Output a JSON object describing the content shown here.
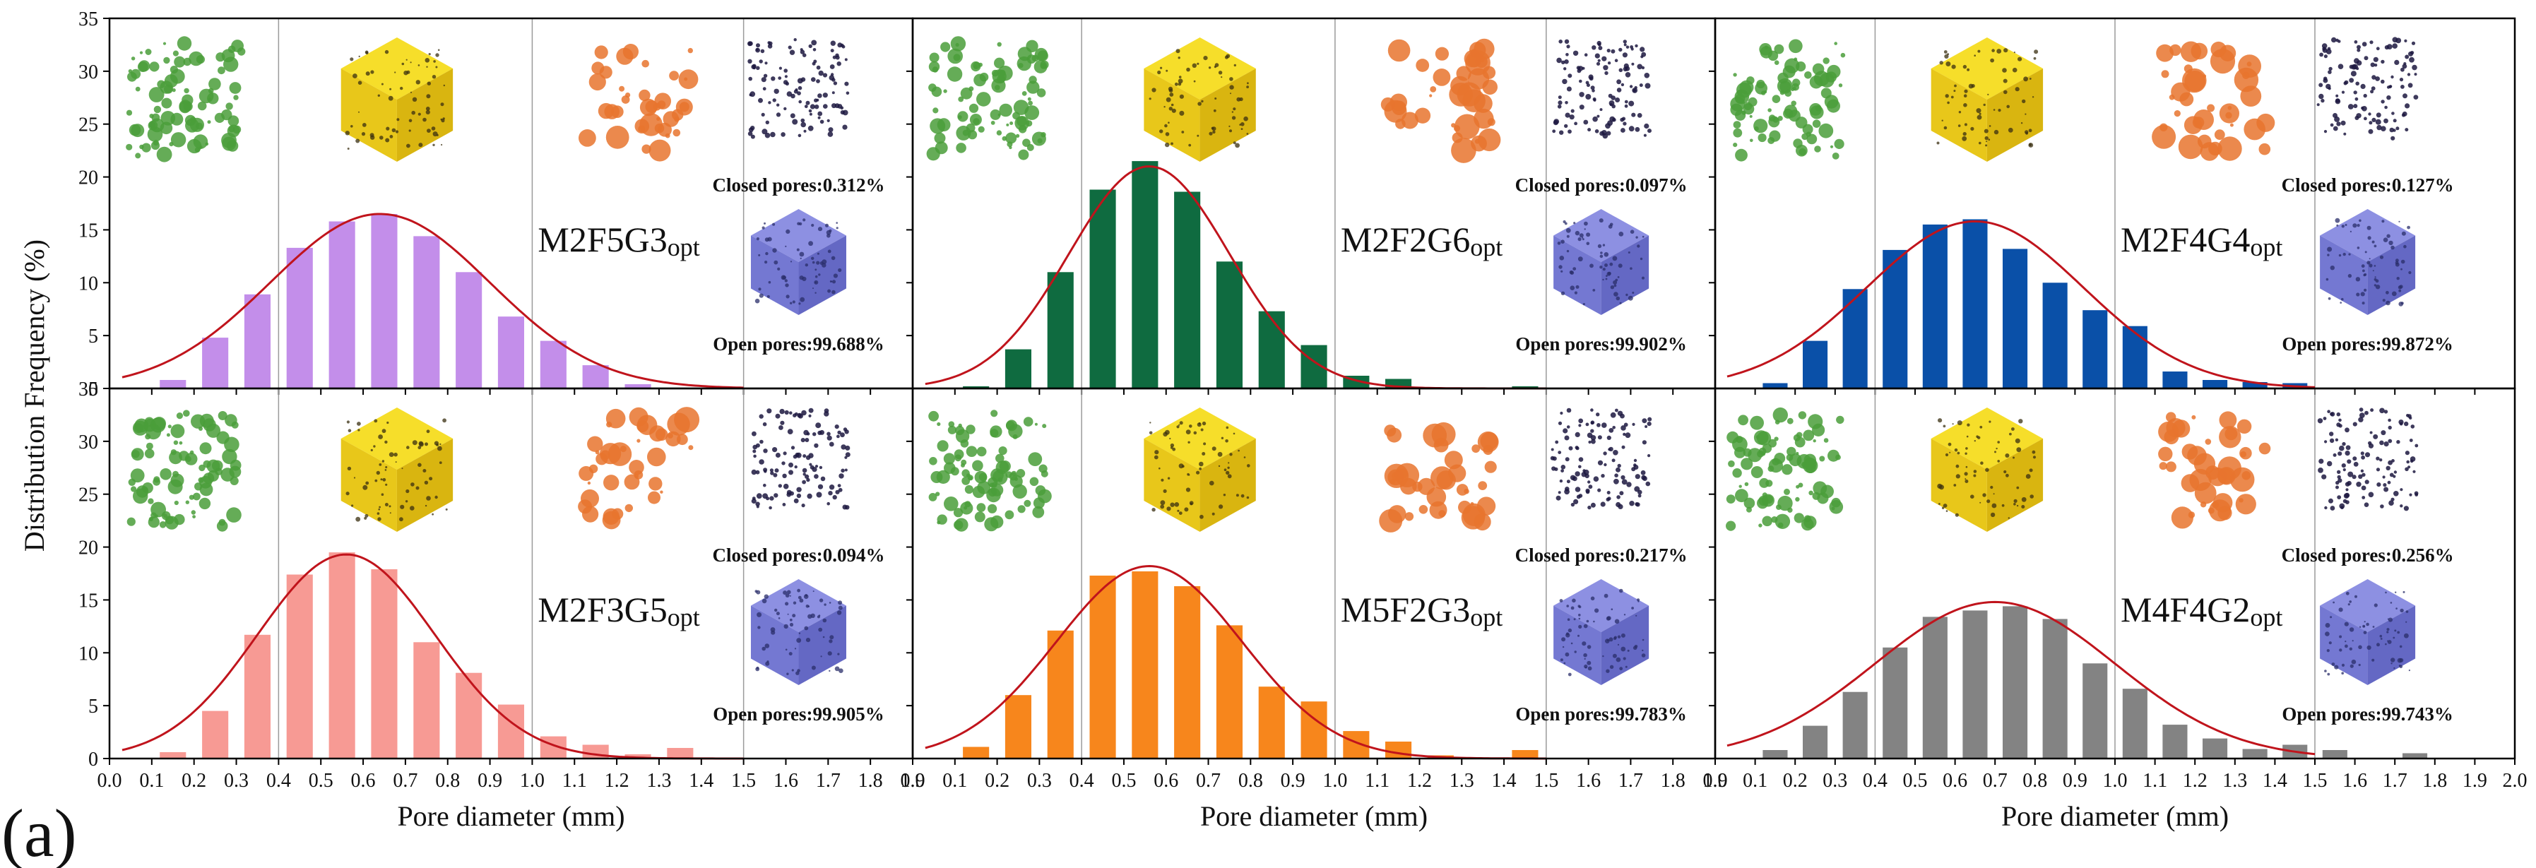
{
  "figure": {
    "panel_label": "(a)",
    "ylabel": "Distribution Frequency (%)",
    "xlabel": "Pore diameter (mm)"
  },
  "colors": {
    "fit_curve": "#c0141c",
    "closed_pore_cube": "#1c1740",
    "open_pore_cube": "#7b7fd6",
    "cube_green": "#4a9e3a",
    "cube_yellow": "#f2d41a",
    "cube_orange": "#e8742e"
  },
  "chart_data": [
    {
      "type": "bar",
      "title": "M2F5G3opt",
      "sample": {
        "main": "M2F5G3",
        "sub": "opt"
      },
      "color": "#c38eea",
      "closed_pores": "Closed pores:0.312%",
      "open_pores": "Open pores:99.688%",
      "x": [
        0.15,
        0.25,
        0.35,
        0.45,
        0.55,
        0.65,
        0.75,
        0.85,
        0.95,
        1.05,
        1.15,
        1.25
      ],
      "values": [
        0.8,
        4.8,
        8.9,
        13.3,
        15.8,
        16.5,
        14.4,
        11.0,
        6.8,
        4.5,
        2.2,
        0.4
      ],
      "fit": {
        "mu": 0.64,
        "sigma": 0.26,
        "peak": 16.5
      },
      "xlim": [
        0.0,
        1.9
      ],
      "ylim": [
        0,
        35
      ],
      "xticks": [
        "0.0",
        "0.1",
        "0.2",
        "0.3",
        "0.4",
        "0.5",
        "0.6",
        "0.7",
        "0.8",
        "0.9",
        "1.0",
        "1.1",
        "1.2",
        "1.3",
        "1.4",
        "1.5",
        "1.6",
        "1.7",
        "1.8",
        "1.9"
      ],
      "yticks": [
        "0",
        "5",
        "10",
        "15",
        "20",
        "25",
        "30",
        "35"
      ]
    },
    {
      "type": "bar",
      "title": "M2F2G6opt",
      "sample": {
        "main": "M2F2G6",
        "sub": "opt"
      },
      "color": "#0f6b40",
      "closed_pores": "Closed pores:0.097%",
      "open_pores": "Open pores:99.902%",
      "x": [
        0.15,
        0.25,
        0.35,
        0.45,
        0.55,
        0.65,
        0.75,
        0.85,
        0.95,
        1.05,
        1.15,
        1.45
      ],
      "values": [
        0.2,
        3.7,
        11.0,
        18.8,
        21.5,
        18.6,
        12.0,
        7.3,
        4.1,
        1.2,
        0.9,
        0.2
      ],
      "fit": {
        "mu": 0.56,
        "sigma": 0.19,
        "peak": 21.0
      },
      "xlim": [
        0.0,
        1.9
      ],
      "ylim": [
        0,
        35
      ],
      "xticks": [
        "0.0",
        "0.1",
        "0.2",
        "0.3",
        "0.4",
        "0.5",
        "0.6",
        "0.7",
        "0.8",
        "0.9",
        "1.0",
        "1.1",
        "1.2",
        "1.3",
        "1.4",
        "1.5",
        "1.6",
        "1.7",
        "1.8",
        "1.9"
      ],
      "yticks": [
        "0",
        "5",
        "10",
        "15",
        "20",
        "25",
        "30",
        "35"
      ]
    },
    {
      "type": "bar",
      "title": "M2F4G4opt",
      "sample": {
        "main": "M2F4G4",
        "sub": "opt"
      },
      "color": "#0a50a8",
      "closed_pores": "Closed pores:0.127%",
      "open_pores": "Open pores:99.872%",
      "x": [
        0.15,
        0.25,
        0.35,
        0.45,
        0.55,
        0.65,
        0.75,
        0.85,
        0.95,
        1.05,
        1.15,
        1.25,
        1.35,
        1.45
      ],
      "values": [
        0.5,
        4.5,
        9.4,
        13.1,
        15.5,
        16.0,
        13.2,
        10.0,
        7.4,
        5.9,
        1.6,
        0.8,
        0.6,
        0.5
      ],
      "fit": {
        "mu": 0.65,
        "sigma": 0.27,
        "peak": 15.8
      },
      "xlim": [
        0.0,
        2.0
      ],
      "ylim": [
        0,
        35
      ],
      "xticks": [
        "0.0",
        "0.1",
        "0.2",
        "0.3",
        "0.4",
        "0.5",
        "0.6",
        "0.7",
        "0.8",
        "0.9",
        "1.0",
        "1.1",
        "1.2",
        "1.3",
        "1.4",
        "1.5",
        "1.6",
        "1.7",
        "1.8",
        "1.9",
        "2.0"
      ],
      "yticks": [
        "0",
        "5",
        "10",
        "15",
        "20",
        "25",
        "30",
        "35"
      ]
    },
    {
      "type": "bar",
      "title": "M2F3G5opt",
      "sample": {
        "main": "M2F3G5",
        "sub": "opt"
      },
      "color": "#f79a94",
      "closed_pores": "Closed pores:0.094%",
      "open_pores": "Open pores:99.905%",
      "x": [
        0.15,
        0.25,
        0.35,
        0.45,
        0.55,
        0.65,
        0.75,
        0.85,
        0.95,
        1.05,
        1.15,
        1.25,
        1.35
      ],
      "values": [
        0.6,
        4.5,
        11.7,
        17.4,
        19.5,
        17.9,
        11.0,
        8.1,
        5.1,
        2.1,
        1.3,
        0.4,
        1.0
      ],
      "fit": {
        "mu": 0.56,
        "sigma": 0.21,
        "peak": 19.3
      },
      "xlim": [
        0.0,
        1.9
      ],
      "ylim": [
        0,
        35
      ],
      "xticks": [
        "0.0",
        "0.1",
        "0.2",
        "0.3",
        "0.4",
        "0.5",
        "0.6",
        "0.7",
        "0.8",
        "0.9",
        "1.0",
        "1.1",
        "1.2",
        "1.3",
        "1.4",
        "1.5",
        "1.6",
        "1.7",
        "1.8",
        "1.9"
      ],
      "yticks": [
        "0",
        "5",
        "10",
        "15",
        "20",
        "25",
        "30",
        "35"
      ]
    },
    {
      "type": "bar",
      "title": "M5F2G3opt",
      "sample": {
        "main": "M5F2G3",
        "sub": "opt"
      },
      "color": "#f7861c",
      "closed_pores": "Closed pores:0.217%",
      "open_pores": "Open pores:99.783%",
      "x": [
        0.15,
        0.25,
        0.35,
        0.45,
        0.55,
        0.65,
        0.75,
        0.85,
        0.95,
        1.05,
        1.15,
        1.25,
        1.45
      ],
      "values": [
        1.1,
        6.0,
        12.1,
        17.3,
        17.7,
        16.3,
        12.6,
        6.8,
        5.4,
        2.6,
        1.6,
        0.3,
        0.8
      ],
      "fit": {
        "mu": 0.56,
        "sigma": 0.22,
        "peak": 18.2
      },
      "xlim": [
        0.0,
        1.9
      ],
      "ylim": [
        0,
        35
      ],
      "xticks": [
        "0.0",
        "0.1",
        "0.2",
        "0.3",
        "0.4",
        "0.5",
        "0.6",
        "0.7",
        "0.8",
        "0.9",
        "1.0",
        "1.1",
        "1.2",
        "1.3",
        "1.4",
        "1.5",
        "1.6",
        "1.7",
        "1.8",
        "1.9"
      ],
      "yticks": [
        "0",
        "5",
        "10",
        "15",
        "20",
        "25",
        "30",
        "35"
      ]
    },
    {
      "type": "bar",
      "title": "M4F4G2opt",
      "sample": {
        "main": "M4F4G2",
        "sub": "opt"
      },
      "color": "#838383",
      "closed_pores": "Closed pores:0.256%",
      "open_pores": "Open pores:99.743%",
      "x": [
        0.15,
        0.25,
        0.35,
        0.45,
        0.55,
        0.65,
        0.75,
        0.85,
        0.95,
        1.05,
        1.15,
        1.25,
        1.35,
        1.45,
        1.55,
        1.75
      ],
      "values": [
        0.8,
        3.1,
        6.3,
        10.5,
        13.4,
        14.0,
        14.4,
        13.2,
        9.0,
        6.6,
        3.2,
        1.9,
        0.9,
        1.3,
        0.8,
        0.5
      ],
      "fit": {
        "mu": 0.7,
        "sigma": 0.3,
        "peak": 14.8
      },
      "xlim": [
        0.0,
        2.0
      ],
      "ylim": [
        0,
        35
      ],
      "xticks": [
        "0.0",
        "0.1",
        "0.2",
        "0.3",
        "0.4",
        "0.5",
        "0.6",
        "0.7",
        "0.8",
        "0.9",
        "1.0",
        "1.1",
        "1.2",
        "1.3",
        "1.4",
        "1.5",
        "1.6",
        "1.7",
        "1.8",
        "1.9",
        "2.0"
      ],
      "yticks": [
        "0",
        "5",
        "10",
        "15",
        "20",
        "25",
        "30",
        "35"
      ]
    }
  ]
}
